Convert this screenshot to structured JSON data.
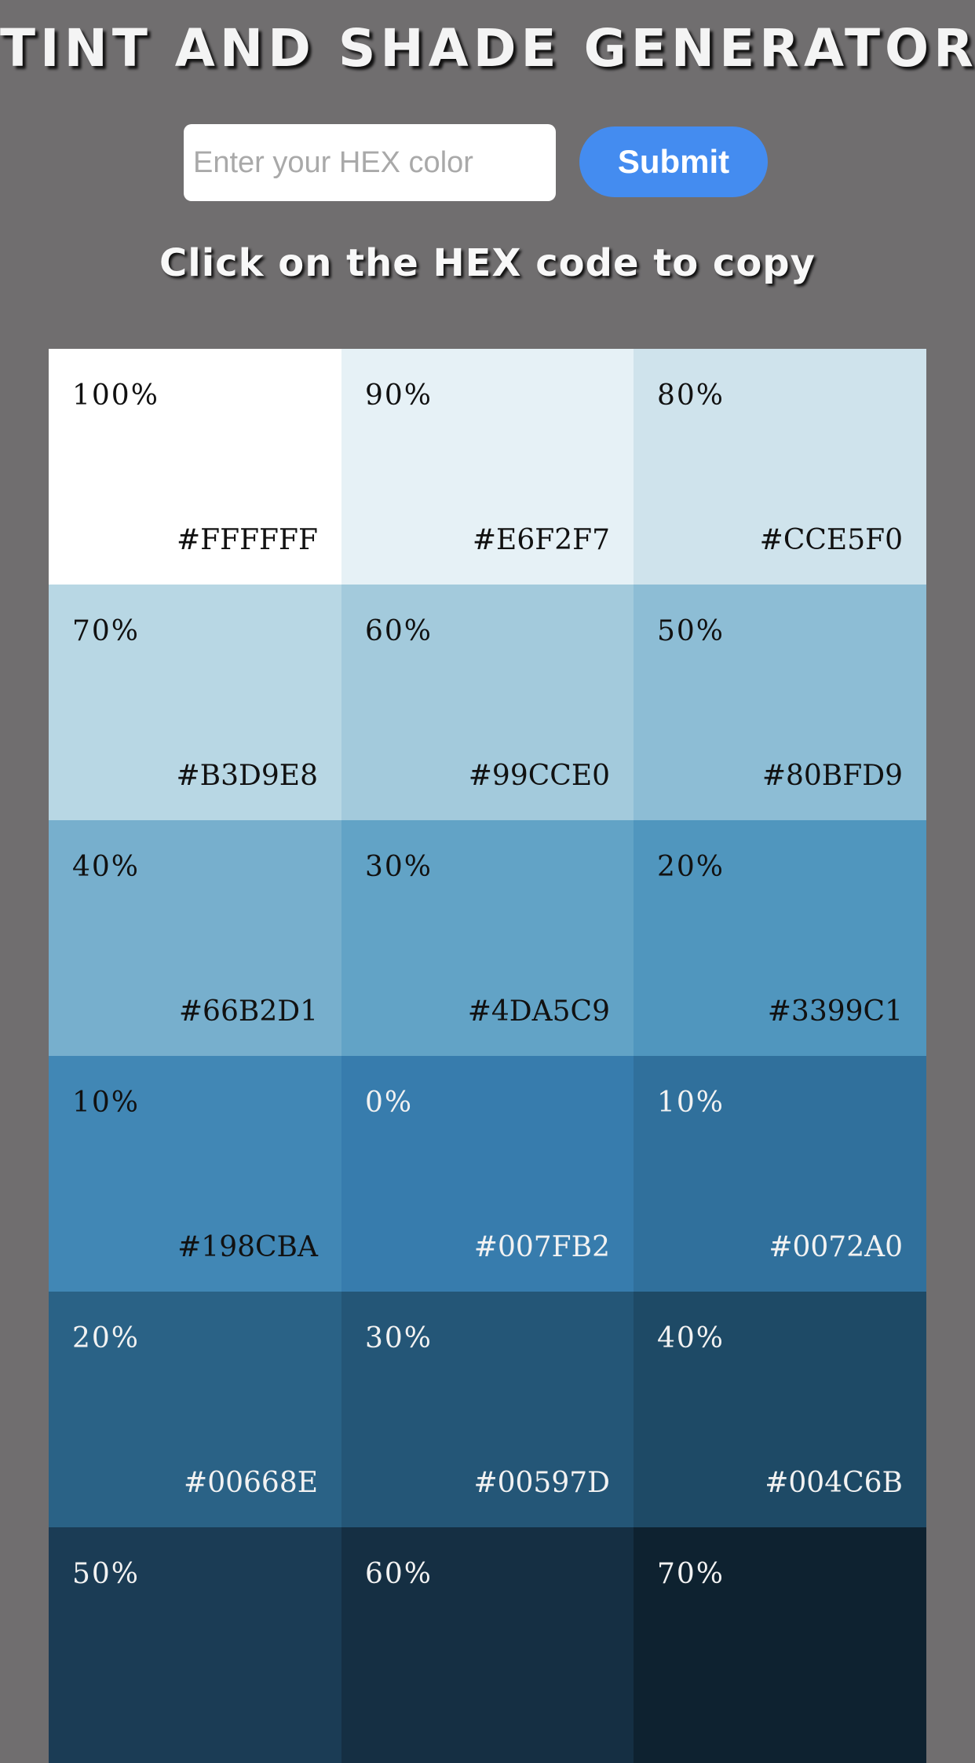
{
  "header": {
    "title": "TINT AND SHADE GENERATOR"
  },
  "form": {
    "input_placeholder": "Enter your HEX color",
    "input_value": "",
    "submit_label": "Submit"
  },
  "hint": "Click on the HEX code to copy",
  "swatches": [
    {
      "percent": "100%",
      "hex": "#FFFFFF",
      "bg": "#FFFFFF",
      "text_color": "#111111"
    },
    {
      "percent": "90%",
      "hex": "#E6F2F7",
      "bg": "#E6F2F7",
      "text_color": "#111111"
    },
    {
      "percent": "80%",
      "hex": "#CCE5F0",
      "bg": "#CCE5F0",
      "text_color": "#111111"
    },
    {
      "percent": "70%",
      "hex": "#B3D9E8",
      "bg": "#B3D9E8",
      "text_color": "#111111"
    },
    {
      "percent": "60%",
      "hex": "#99CCE0",
      "bg": "#99CCE0",
      "text_color": "#111111"
    },
    {
      "percent": "50%",
      "hex": "#80BFD9",
      "bg": "#80BFD9",
      "text_color": "#111111"
    },
    {
      "percent": "40%",
      "hex": "#66B2D1",
      "bg": "#66B2D1",
      "text_color": "#111111"
    },
    {
      "percent": "30%",
      "hex": "#4DA5C9",
      "bg": "#4DA5C9",
      "text_color": "#111111"
    },
    {
      "percent": "20%",
      "hex": "#3399C1",
      "bg": "#3399C1",
      "text_color": "#111111"
    },
    {
      "percent": "10%",
      "hex": "#198CBA",
      "bg": "#198CBA",
      "text_color": "#111111"
    },
    {
      "percent": "0%",
      "hex": "#007FB2",
      "bg": "#007FB2",
      "text_color": "#F2F2F2"
    },
    {
      "percent": "10%",
      "hex": "#0072A0",
      "bg": "#0072A0",
      "text_color": "#F2F2F2"
    },
    {
      "percent": "20%",
      "hex": "#00668E",
      "bg": "#00668E",
      "text_color": "#F2F2F2"
    },
    {
      "percent": "30%",
      "hex": "#00597D",
      "bg": "#00597D",
      "text_color": "#F2F2F2"
    },
    {
      "percent": "40%",
      "hex": "#004C6B",
      "bg": "#004C6B",
      "text_color": "#F2F2F2"
    },
    {
      "percent": "50%",
      "hex": "",
      "bg": "#00405A",
      "text_color": "#F2F2F2"
    },
    {
      "percent": "60%",
      "hex": "",
      "bg": "#003348",
      "text_color": "#F2F2F2"
    },
    {
      "percent": "70%",
      "hex": "",
      "bg": "#002636",
      "text_color": "#F2F2F2"
    }
  ],
  "colors": {
    "page_background": "#706E6F",
    "submit_button": "#448CF0",
    "overlay_tint": "#6E6E6E"
  }
}
